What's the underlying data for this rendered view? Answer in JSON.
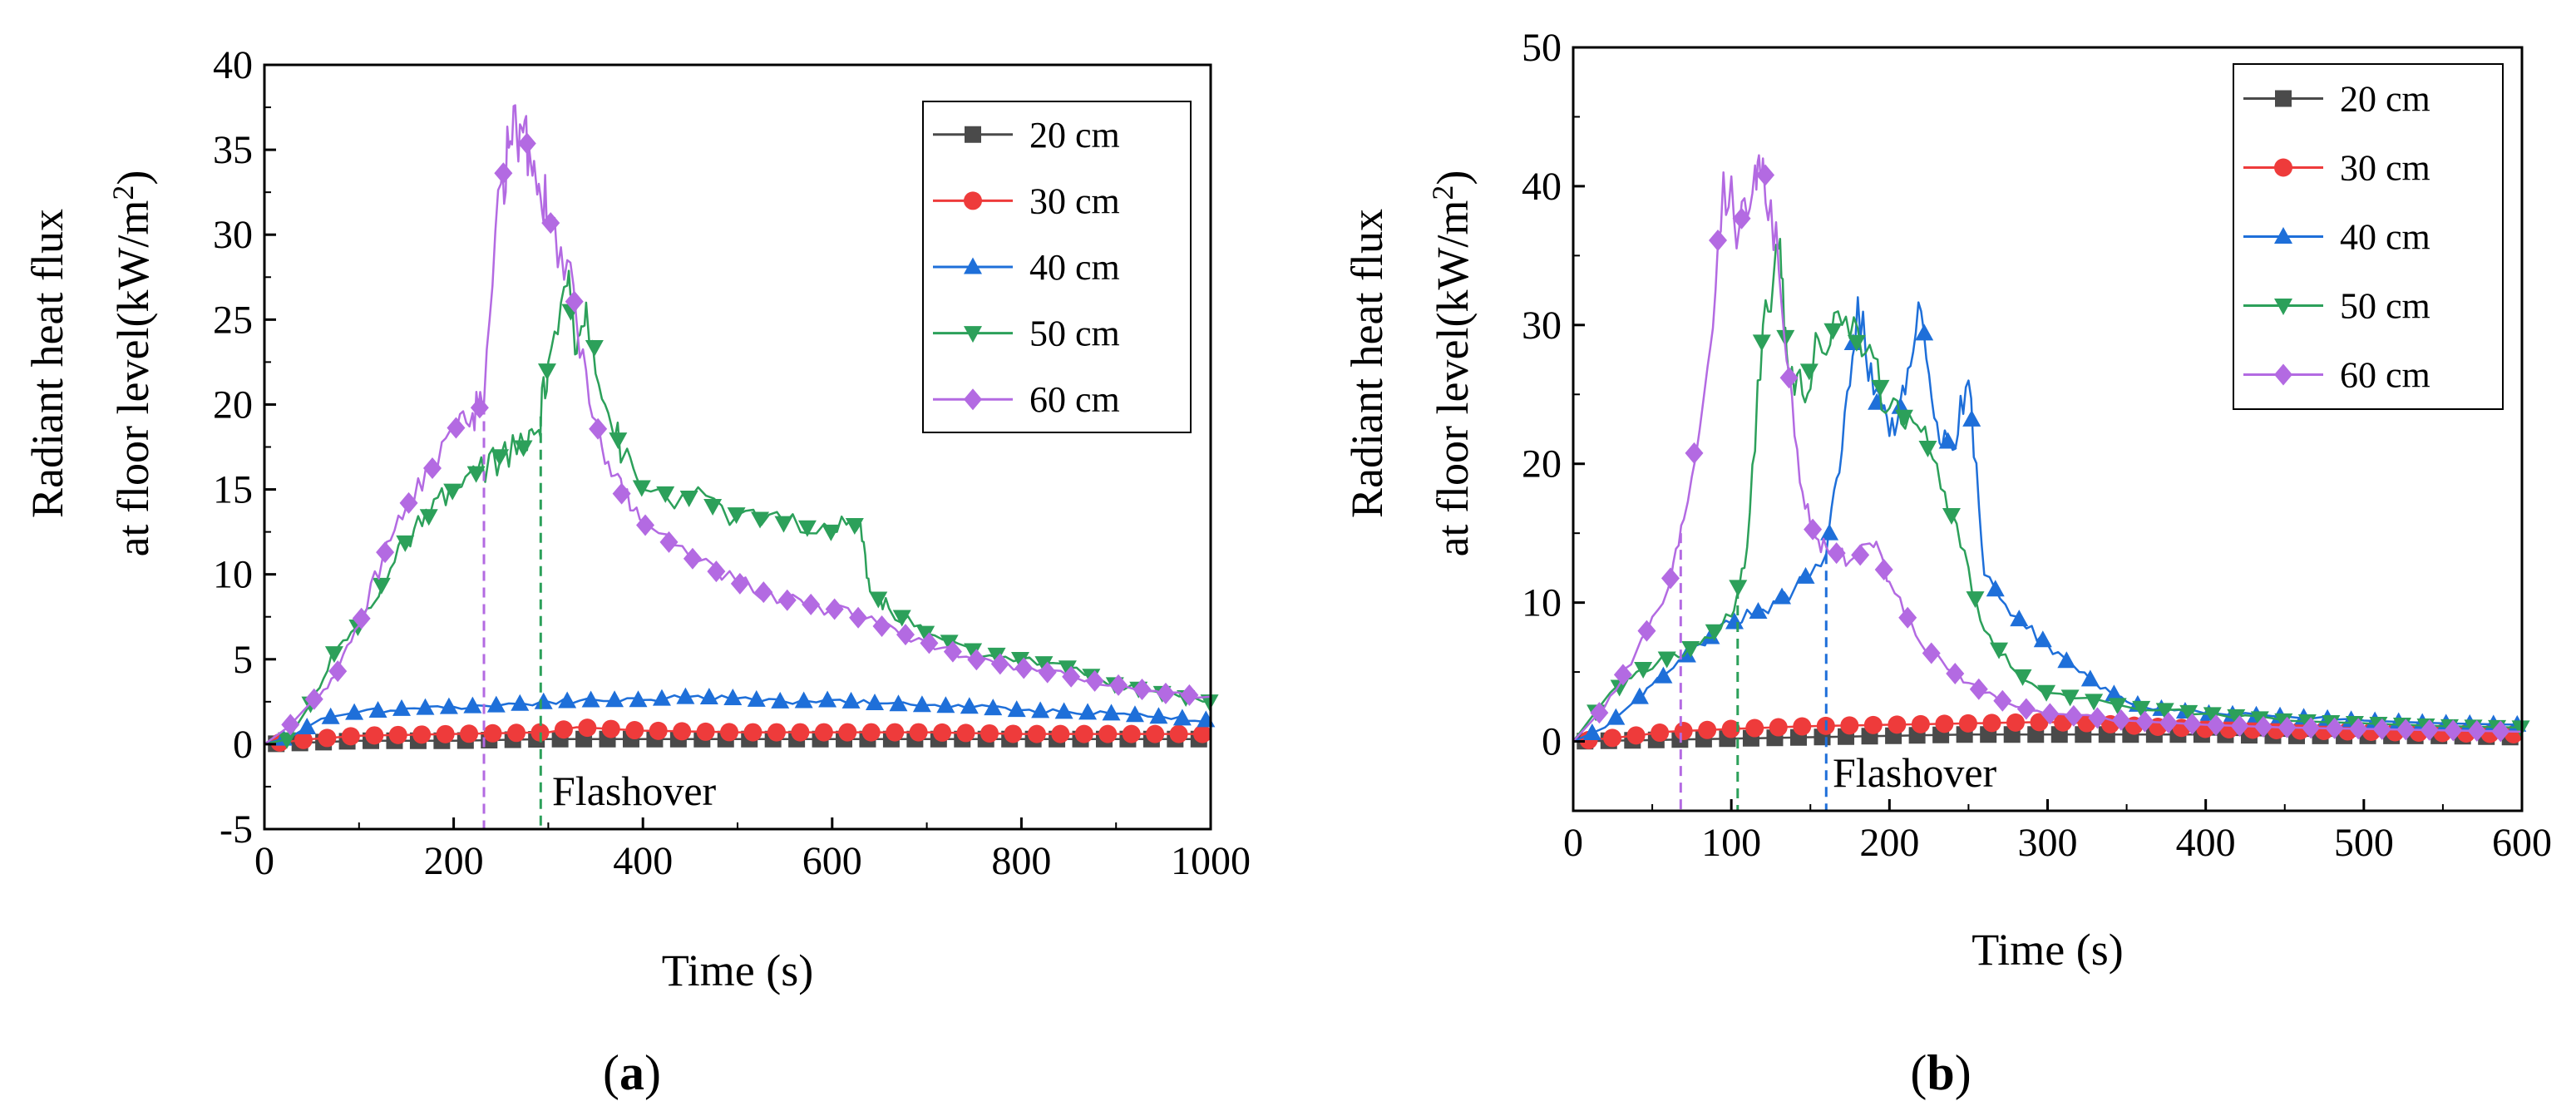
{
  "chart_data": [
    {
      "type": "line",
      "panel_label": "a",
      "xlabel": "Time (s)",
      "ylabel_line1": "Radiant heat flux",
      "ylabel_line2": "at floor level(kW/m",
      "ylabel_sup": "2",
      "ylabel_close": ")",
      "xlim": [
        0,
        1000
      ],
      "ylim": [
        -5,
        40
      ],
      "xticks": [
        0,
        200,
        400,
        600,
        800,
        1000
      ],
      "yticks": [
        -5,
        0,
        5,
        10,
        15,
        20,
        25,
        30,
        35,
        40
      ],
      "legend_position": "top-right",
      "annotation": "Flashover",
      "flashover_lines": [
        {
          "x": 232,
          "color": "#b36ae2"
        },
        {
          "x": 292,
          "color": "#2ca05a"
        }
      ],
      "series": [
        {
          "name": "20 cm",
          "color": "#4a4a4a",
          "marker": "square",
          "x": [
            0,
            50,
            100,
            200,
            300,
            400,
            500,
            600,
            700,
            800,
            900,
            1000
          ],
          "y": [
            0,
            0.1,
            0.2,
            0.2,
            0.3,
            0.3,
            0.3,
            0.3,
            0.3,
            0.3,
            0.3,
            0.3
          ]
        },
        {
          "name": "30 cm",
          "color": "#ee3b3b",
          "marker": "circle",
          "x": [
            0,
            50,
            100,
            200,
            300,
            330,
            400,
            500,
            600,
            700,
            800,
            900,
            1000
          ],
          "y": [
            0,
            0.3,
            0.5,
            0.6,
            0.7,
            1.0,
            0.8,
            0.7,
            0.7,
            0.7,
            0.6,
            0.6,
            0.6
          ]
        },
        {
          "name": "40 cm",
          "color": "#1e6fd9",
          "marker": "triangle-up",
          "x": [
            0,
            30,
            60,
            100,
            150,
            200,
            250,
            300,
            350,
            400,
            450,
            500,
            550,
            600,
            650,
            700,
            750,
            800,
            850,
            900,
            950,
            1000
          ],
          "y": [
            0,
            0.5,
            1.5,
            1.9,
            2.1,
            2.2,
            2.3,
            2.5,
            2.6,
            2.6,
            2.8,
            2.7,
            2.5,
            2.6,
            2.4,
            2.3,
            2.2,
            2.0,
            1.9,
            1.8,
            1.6,
            1.4
          ]
        },
        {
          "name": "50 cm",
          "color": "#2ca05a",
          "marker": "triangle-down",
          "x": [
            0,
            25,
            50,
            75,
            100,
            125,
            150,
            175,
            200,
            225,
            250,
            275,
            290,
            300,
            320,
            330,
            340,
            360,
            380,
            400,
            450,
            500,
            550,
            600,
            630,
            640,
            660,
            700,
            750,
            800,
            850,
            900,
            950,
            1000
          ],
          "y": [
            0,
            0.3,
            2.5,
            5.5,
            7,
            9.5,
            12,
            13.5,
            15,
            16,
            17,
            17.5,
            18.5,
            22.5,
            27,
            23,
            26,
            20,
            17,
            15,
            14.5,
            13.5,
            13,
            12.5,
            13,
            9,
            8,
            6.5,
            5.5,
            5,
            4.5,
            3.5,
            3,
            2.5
          ]
        },
        {
          "name": "60 cm",
          "color": "#b36ae2",
          "marker": "diamond",
          "x": [
            0,
            25,
            50,
            75,
            100,
            125,
            150,
            175,
            200,
            220,
            232,
            250,
            260,
            270,
            280,
            290,
            300,
            320,
            340,
            360,
            380,
            400,
            450,
            500,
            550,
            600,
            650,
            700,
            750,
            800,
            850,
            900,
            950,
            1000
          ],
          "y": [
            0,
            1,
            2.5,
            4,
            7,
            11,
            14,
            16,
            18.5,
            19.5,
            20,
            33,
            35.5,
            36.5,
            35,
            33,
            31,
            28.5,
            22,
            16.5,
            14.5,
            13,
            11,
            9.5,
            8.5,
            8,
            7,
            6,
            5,
            4.5,
            4,
            3.5,
            3,
            2.8
          ]
        }
      ]
    },
    {
      "type": "line",
      "panel_label": "b",
      "xlabel": "Time (s)",
      "ylabel_line1": "Radiant heat flux",
      "ylabel_line2": "at floor level(kW/m",
      "ylabel_sup": "2",
      "ylabel_close": ")",
      "xlim": [
        0,
        600
      ],
      "ylim": [
        -5,
        50
      ],
      "xticks": [
        0,
        100,
        200,
        300,
        400,
        500,
        600
      ],
      "yticks": [
        0,
        10,
        20,
        30,
        40,
        50
      ],
      "legend_position": "top-right",
      "annotation": "Flashover",
      "flashover_lines": [
        {
          "x": 68,
          "color": "#b36ae2"
        },
        {
          "x": 104,
          "color": "#2ca05a"
        },
        {
          "x": 160,
          "color": "#1e6fd9"
        }
      ],
      "series": [
        {
          "name": "20 cm",
          "color": "#4a4a4a",
          "marker": "square",
          "x": [
            0,
            50,
            100,
            150,
            200,
            250,
            300,
            350,
            400,
            450,
            500,
            550,
            600
          ],
          "y": [
            0,
            0.1,
            0.2,
            0.3,
            0.4,
            0.5,
            0.5,
            0.5,
            0.5,
            0.4,
            0.4,
            0.4,
            0.3
          ]
        },
        {
          "name": "30 cm",
          "color": "#ee3b3b",
          "marker": "circle",
          "x": [
            0,
            30,
            60,
            100,
            150,
            200,
            250,
            300,
            330,
            360,
            400,
            450,
            500,
            550,
            600
          ],
          "y": [
            0,
            0.3,
            0.7,
            0.9,
            1.1,
            1.2,
            1.3,
            1.4,
            1.3,
            1.1,
            0.9,
            0.8,
            0.7,
            0.6,
            0.5
          ]
        },
        {
          "name": "40 cm",
          "color": "#1e6fd9",
          "marker": "triangle-up",
          "x": [
            0,
            20,
            40,
            60,
            80,
            100,
            120,
            140,
            160,
            170,
            180,
            190,
            200,
            210,
            220,
            230,
            240,
            250,
            260,
            280,
            300,
            320,
            340,
            360,
            400,
            450,
            500,
            550,
            600
          ],
          "y": [
            0,
            1,
            3,
            5,
            7,
            8.5,
            9.5,
            11,
            13.5,
            21,
            32,
            25,
            22,
            25,
            31,
            23,
            21,
            26,
            12,
            9,
            7,
            5,
            3.5,
            2.5,
            2,
            1.8,
            1.5,
            1.3,
            1.2
          ]
        },
        {
          "name": "50 cm",
          "color": "#2ca05a",
          "marker": "triangle-down",
          "x": [
            0,
            20,
            40,
            60,
            80,
            100,
            110,
            120,
            130,
            135,
            145,
            155,
            170,
            185,
            200,
            215,
            230,
            245,
            260,
            280,
            300,
            350,
            400,
            450,
            500,
            550,
            600
          ],
          "y": [
            0,
            3,
            5,
            6,
            7,
            9,
            14,
            30,
            35.5,
            28,
            25,
            29,
            30,
            28,
            24,
            23,
            20,
            14,
            8,
            5,
            3.5,
            2.5,
            2,
            1.5,
            1.3,
            1.1,
            1
          ]
        },
        {
          "name": "60 cm",
          "color": "#b36ae2",
          "marker": "diamond",
          "x": [
            0,
            20,
            40,
            60,
            70,
            85,
            95,
            105,
            115,
            120,
            130,
            140,
            150,
            160,
            175,
            190,
            200,
            220,
            240,
            260,
            280,
            300,
            350,
            400,
            450,
            500,
            550,
            600
          ],
          "y": [
            0,
            2.5,
            6.5,
            11,
            16,
            27,
            41,
            37,
            41.5,
            42,
            34,
            22,
            15.5,
            14,
            13,
            14,
            11.5,
            7,
            5,
            3.5,
            2.5,
            2,
            1.5,
            1.2,
            1,
            0.9,
            0.8,
            0.7
          ]
        }
      ]
    }
  ]
}
